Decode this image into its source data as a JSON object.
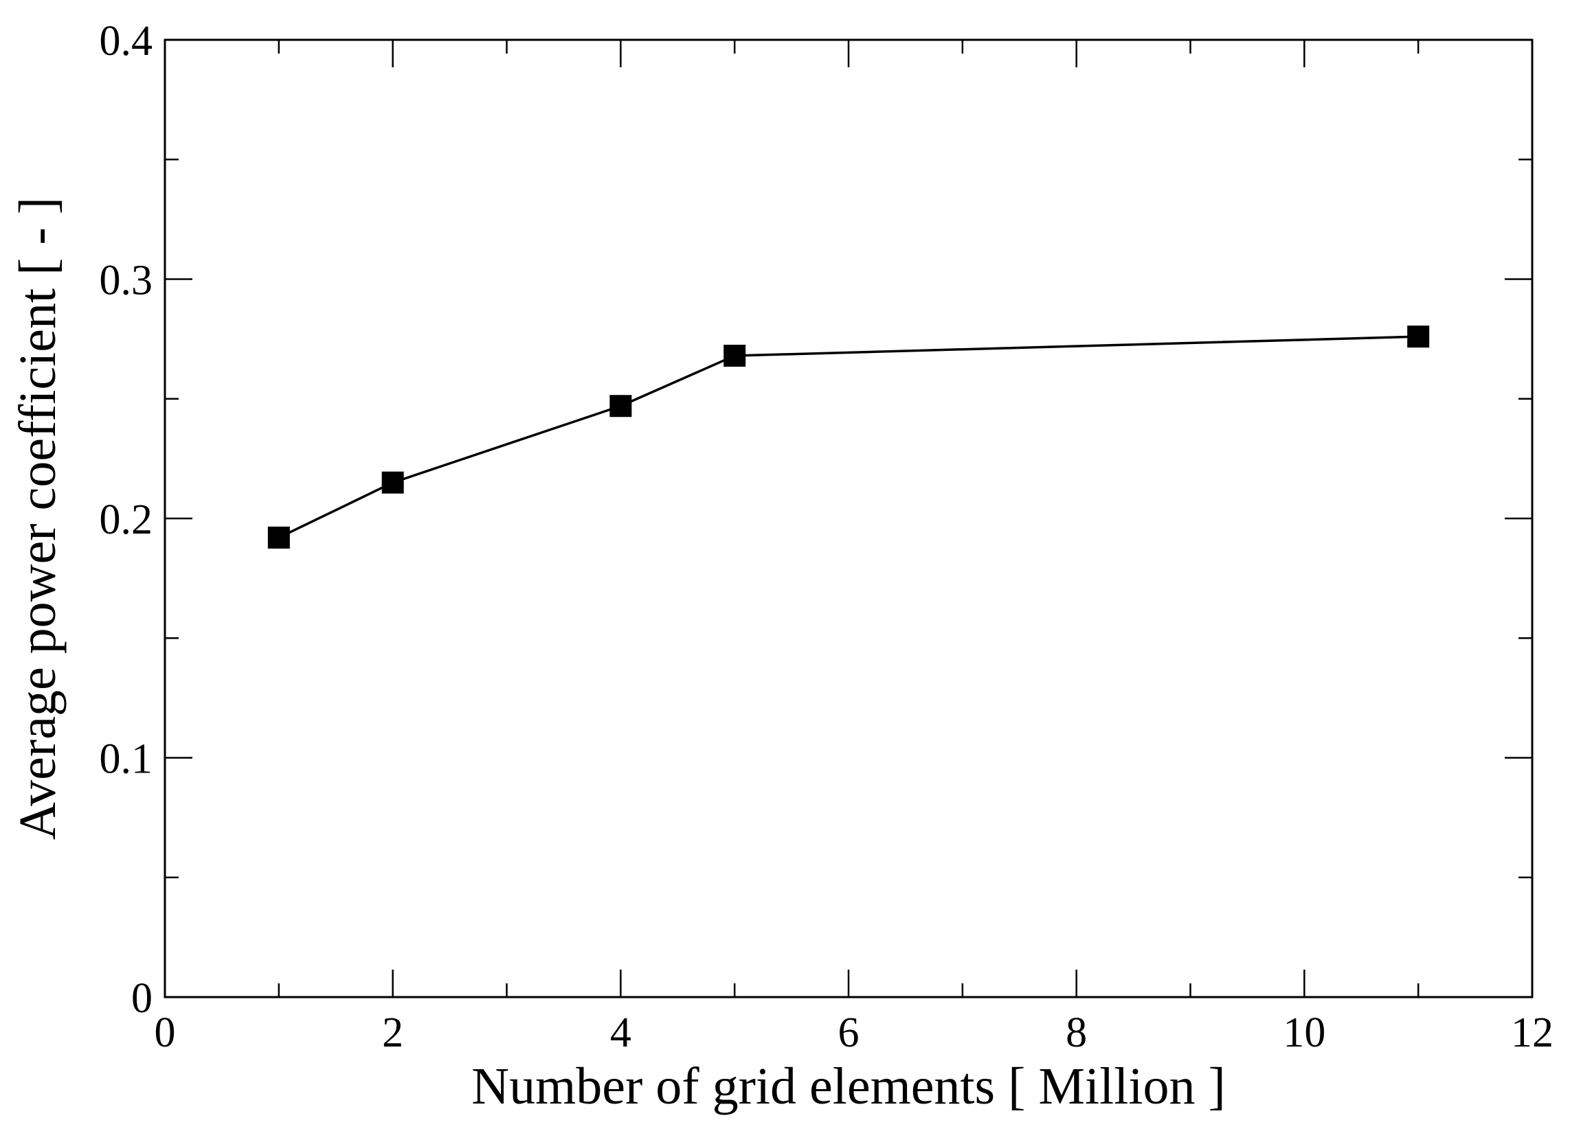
{
  "chart_data": {
    "type": "line",
    "title": "",
    "xlabel": "Number of grid elements [ Million ]",
    "ylabel": "Average power coefficient [ - ]",
    "xlim": [
      0,
      12
    ],
    "ylim": [
      0,
      0.4
    ],
    "x_ticks": [
      0,
      2,
      4,
      6,
      8,
      10,
      12
    ],
    "x_tick_labels": [
      "0",
      "2",
      "4",
      "6",
      "8",
      "10",
      "12"
    ],
    "x_minor_ticks": [
      1,
      3,
      5,
      7,
      9,
      11
    ],
    "y_ticks": [
      0,
      0.1,
      0.2,
      0.3,
      0.4
    ],
    "y_tick_labels": [
      "0",
      "0.1",
      "0.2",
      "0.3",
      "0.4"
    ],
    "y_minor_ticks": [
      0.05,
      0.15,
      0.25,
      0.35
    ],
    "grid": false,
    "legend": "none",
    "series": [
      {
        "x": [
          1,
          2,
          4,
          5,
          11
        ],
        "y": [
          0.192,
          0.215,
          0.247,
          0.268,
          0.276
        ],
        "marker": "square",
        "color": "#000000"
      }
    ]
  }
}
